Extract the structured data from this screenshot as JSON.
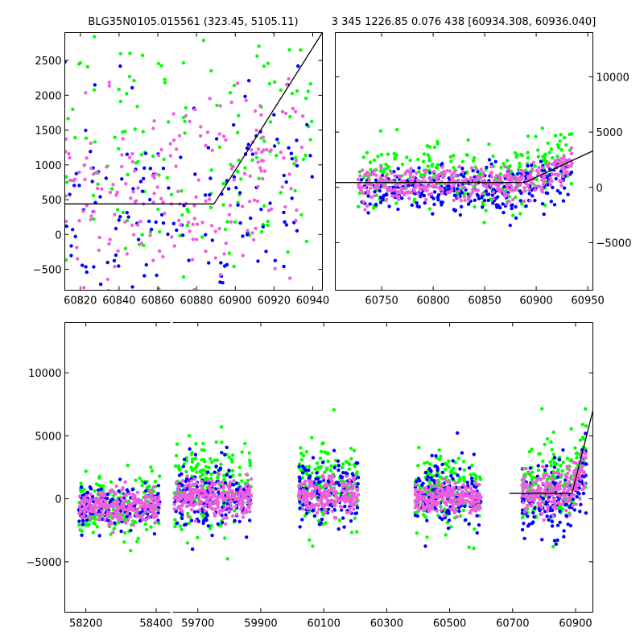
{
  "chart_data": [
    {
      "type": "scatter",
      "title": "BLG35N0105.015561 (323.45, 5105.11)",
      "xlabel": "",
      "ylabel": "",
      "xlim": [
        60812,
        60945
      ],
      "ylim": [
        -800,
        2900
      ],
      "xticks": [
        60820,
        60840,
        60860,
        60880,
        60900,
        60920,
        60940
      ],
      "yticks": [
        -500,
        0,
        500,
        1000,
        1500,
        2000,
        2500
      ],
      "ytick_side": "left",
      "series": [
        {
          "color": "#00ff00",
          "n": 150,
          "x_range": [
            60812,
            60940
          ],
          "ymean": 1100,
          "ysd": 900,
          "drift": [
            [
              60812,
              0
            ],
            [
              60895,
              0
            ],
            [
              60940,
              900
            ]
          ]
        },
        {
          "color": "#0000ff",
          "n": 150,
          "x_range": [
            60812,
            60940
          ],
          "ymean": 300,
          "ysd": 800,
          "drift": [
            [
              60812,
              0
            ],
            [
              60895,
              0
            ],
            [
              60940,
              700
            ]
          ]
        },
        {
          "color": "#ee5fe0",
          "n": 200,
          "x_range": [
            60812,
            60935
          ],
          "ymean": 500,
          "ysd": 700,
          "drift": [
            [
              60812,
              0
            ],
            [
              60895,
              0
            ],
            [
              60935,
              800
            ]
          ]
        }
      ],
      "model_line": [
        [
          60812,
          440
        ],
        [
          60889,
          440
        ],
        [
          60945,
          2900
        ]
      ]
    },
    {
      "type": "scatter",
      "title": "3 345 1226.85 0.076 438 [60934.308, 60936.040]",
      "xlabel": "",
      "ylabel": "",
      "xlim": [
        60705,
        60955
      ],
      "ylim": [
        -9300,
        14000
      ],
      "xticks": [
        60750,
        60800,
        60850,
        60900,
        60950
      ],
      "yticks": [
        -5000,
        0,
        5000,
        10000
      ],
      "ytick_side": "right",
      "series": [
        {
          "color": "#00ff00",
          "n": 300,
          "x_range": [
            60727,
            60935
          ],
          "ymean": 800,
          "ysd": 1400,
          "drift": [
            [
              60727,
              0
            ],
            [
              60880,
              0
            ],
            [
              60935,
              2500
            ]
          ]
        },
        {
          "color": "#0000ff",
          "n": 300,
          "x_range": [
            60730,
            60935
          ],
          "ymean": -300,
          "ysd": 1100,
          "drift": [
            [
              60730,
              0
            ],
            [
              60880,
              0
            ],
            [
              60935,
              1500
            ]
          ]
        },
        {
          "color": "#ee5fe0",
          "n": 400,
          "x_range": [
            60727,
            60935
          ],
          "ymean": 300,
          "ysd": 700,
          "drift": [
            [
              60727,
              0
            ],
            [
              60885,
              0
            ],
            [
              60935,
              1800
            ]
          ]
        }
      ],
      "model_line": [
        [
          60705,
          440
        ],
        [
          60889,
          440
        ],
        [
          60955,
          3300
        ]
      ]
    },
    {
      "type": "scatter",
      "title": "",
      "xlabel": "",
      "ylabel": "",
      "ylim": [
        -9000,
        14000
      ],
      "yticks": [
        -5000,
        0,
        5000,
        10000
      ],
      "ytick_side": "left",
      "x_segments": [
        {
          "xlim": [
            58140,
            58440
          ],
          "xticks": [
            58200,
            58400
          ]
        },
        {
          "xlim": [
            59620,
            60955
          ],
          "xticks": [
            59700,
            59900,
            60100,
            60300,
            60500,
            60700,
            60900
          ]
        }
      ],
      "seasons": [
        {
          "x_range": [
            58180,
            58410
          ],
          "green": {
            "mean": -600,
            "sd": 1200
          },
          "blue": {
            "mean": -700,
            "sd": 900
          },
          "pink": {
            "mean": -700,
            "sd": 650
          }
        },
        {
          "x_range": [
            59625,
            59870
          ],
          "green": {
            "mean": 1200,
            "sd": 1800
          },
          "blue": {
            "mean": 400,
            "sd": 1300
          },
          "pink": {
            "mean": 100,
            "sd": 700
          }
        },
        {
          "x_range": [
            60020,
            60210
          ],
          "green": {
            "mean": 1000,
            "sd": 1700
          },
          "blue": {
            "mean": 600,
            "sd": 1300
          },
          "pink": {
            "mean": 200,
            "sd": 700
          }
        },
        {
          "x_range": [
            60390,
            60600
          ],
          "green": {
            "mean": 700,
            "sd": 1500
          },
          "blue": {
            "mean": 300,
            "sd": 1300
          },
          "pink": {
            "mean": 100,
            "sd": 600
          }
        },
        {
          "x_range": [
            60730,
            60935
          ],
          "green": {
            "mean": 1200,
            "sd": 1800
          },
          "blue": {
            "mean": -300,
            "sd": 1400
          },
          "pink": {
            "mean": 500,
            "sd": 800
          }
        }
      ],
      "colors": {
        "green": "#00ff00",
        "blue": "#0000ff",
        "pink": "#ee5fe0"
      },
      "model_line": [
        [
          60690,
          440
        ],
        [
          60889,
          440
        ],
        [
          60955,
          7000
        ]
      ]
    }
  ]
}
